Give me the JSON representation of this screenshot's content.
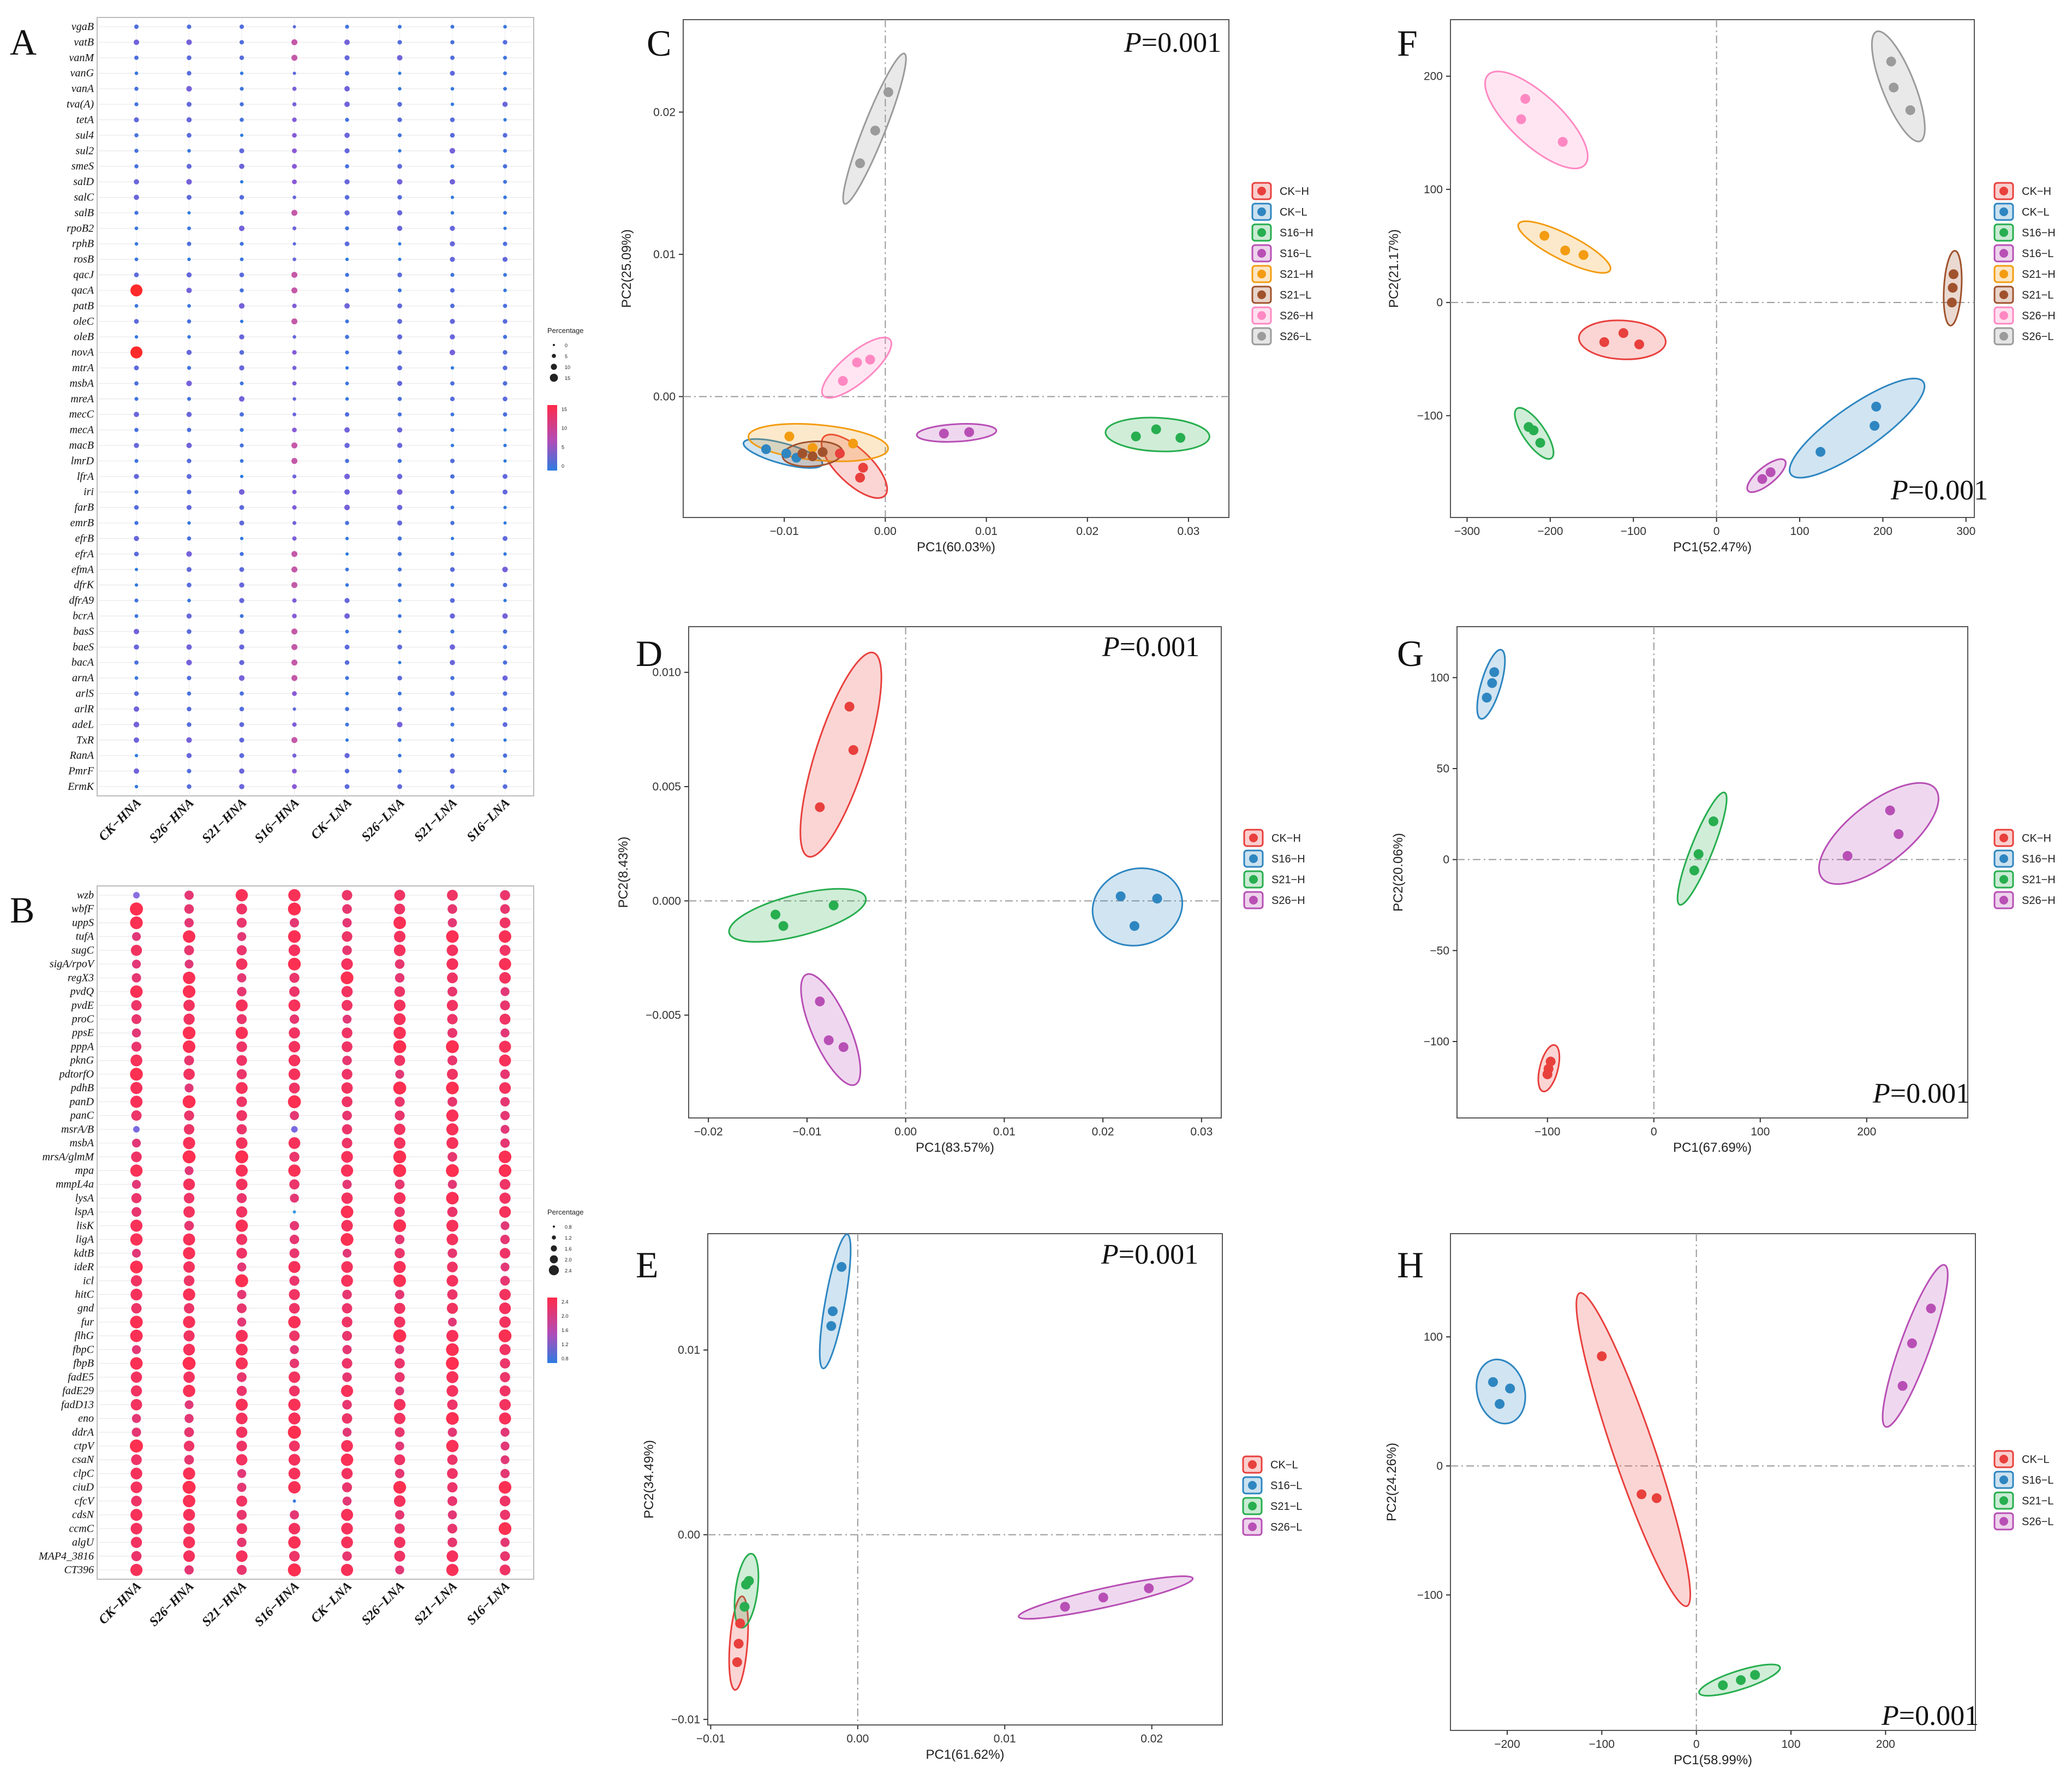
{
  "colors": {
    "CK": "#e8403d",
    "S16_1": "#2e86c1",
    "S16_2": "#27ae4f",
    "S21_1": "#f39c12",
    "S21_2": "#a0522d",
    "S26_1": "#ff88c2",
    "S26_2": "#9b9b9b",
    "purple": "#b84fb5",
    "bubbleA_low": "#2d7be0",
    "bubbleA_high": "#ff2a2a"
  },
  "chart_data": [
    {
      "panel": "A",
      "type": "heatmap",
      "genes": [
        "vgaB",
        "vatB",
        "vanM",
        "vanG",
        "vanA",
        "tva(A)",
        "tetA",
        "sul4",
        "sul2",
        "smeS",
        "salD",
        "salC",
        "salB",
        "rpoB2",
        "rphB",
        "rosB",
        "qacJ",
        "qacA",
        "patB",
        "oleC",
        "oleB",
        "novA",
        "mtrA",
        "msbA",
        "mreA",
        "mecC",
        "mecA",
        "macB",
        "lmrD",
        "lfrA",
        "iri",
        "farB",
        "emrB",
        "efrB",
        "efrA",
        "efmA",
        "dfrK",
        "dfrA9",
        "bcrA",
        "basS",
        "baeS",
        "bacA",
        "arnA",
        "arlS",
        "arlR",
        "adeL",
        "TxR",
        "RanA",
        "PmrF",
        "ErmK"
      ],
      "samples": [
        "CK−HNA",
        "S26−HNA",
        "S21−HNA",
        "S16−HNA",
        "CK−LNA",
        "S26−LNA",
        "S21−LNA",
        "S16−LNA"
      ],
      "legend_title": "Percentage",
      "size_legend": [
        "0",
        "5",
        "10",
        "15"
      ],
      "color_legend": [
        "15",
        "10",
        "5",
        "0"
      ],
      "highlights": [
        {
          "gene": "qacA",
          "sample": "CK−HNA",
          "value": 15
        },
        {
          "gene": "novA",
          "sample": "CK−HNA",
          "value": 15
        }
      ]
    },
    {
      "panel": "B",
      "type": "heatmap",
      "genes": [
        "wzb",
        "wbfF",
        "uppS",
        "tufA",
        "sugC",
        "sigA/rpoV",
        "regX3",
        "pvdQ",
        "pvdE",
        "proC",
        "ppsE",
        "pppA",
        "pknG",
        "pdtorfO",
        "pdhB",
        "panD",
        "panC",
        "msrA/B",
        "msbA",
        "mrsA/glmM",
        "mpa",
        "mmpL4a",
        "lysA",
        "lspA",
        "lisK",
        "ligA",
        "kdtB",
        "ideR",
        "icl",
        "hitC",
        "gnd",
        "fur",
        "flhG",
        "fbpC",
        "fbpB",
        "fadE5",
        "fadE29",
        "fadD13",
        "eno",
        "ddrA",
        "ctpV",
        "csaN",
        "clpC",
        "ciuD",
        "cfcV",
        "cdsN",
        "ccmC",
        "algU",
        "MAP4_3816",
        "CT396"
      ],
      "samples": [
        "CK−HNA",
        "S26−HNA",
        "S21−HNA",
        "S16−HNA",
        "CK−LNA",
        "S26−LNA",
        "S21−LNA",
        "S16−LNA"
      ],
      "legend_title": "Percentage",
      "size_legend": [
        "0.8",
        "1.2",
        "1.6",
        "2.0",
        "2.4"
      ],
      "color_legend": [
        "2.4",
        "2.0",
        "1.6",
        "1.2",
        "0.8"
      ]
    },
    {
      "panel": "C",
      "type": "scatter",
      "pvalue": "=0.001",
      "xlabel": "PC1(60.03%)",
      "ylabel": "PC2(25.09%)",
      "xlim": [
        -0.02,
        0.034
      ],
      "ylim": [
        -0.0085,
        0.0265
      ],
      "xticks": [
        -0.01,
        0.0,
        0.01,
        0.02,
        0.03
      ],
      "xtick_labels": [
        "−0.01",
        "0.00",
        "0.01",
        "0.02",
        "0.03"
      ],
      "yticks": [
        0.0,
        0.01,
        0.02
      ],
      "ytick_labels": [
        "0.00",
        "0.01",
        "0.02"
      ],
      "series": [
        {
          "name": "CK−H",
          "color": "CK",
          "points": [
            [
              -0.0045,
              -0.004
            ],
            [
              -0.0022,
              -0.005
            ],
            [
              -0.0025,
              -0.0057
            ]
          ]
        },
        {
          "name": "CK−L",
          "color": "S16_1",
          "points": [
            [
              -0.0118,
              -0.0037
            ],
            [
              -0.0098,
              -0.004
            ],
            [
              -0.0088,
              -0.0043
            ]
          ]
        },
        {
          "name": "S16−H",
          "color": "S16_2",
          "points": [
            [
              0.0248,
              -0.0028
            ],
            [
              0.0268,
              -0.0023
            ],
            [
              0.0292,
              -0.0029
            ]
          ]
        },
        {
          "name": "S16−L",
          "color": "purple",
          "points": [
            [
              0.0058,
              -0.0026
            ],
            [
              0.0083,
              -0.0025
            ]
          ]
        },
        {
          "name": "S21−H",
          "color": "S21_1",
          "points": [
            [
              -0.0095,
              -0.0028
            ],
            [
              -0.0032,
              -0.0033
            ],
            [
              -0.0072,
              -0.0036
            ]
          ]
        },
        {
          "name": "S21−L",
          "color": "S21_2",
          "points": [
            [
              -0.0082,
              -0.004
            ],
            [
              -0.0072,
              -0.0042
            ],
            [
              -0.0062,
              -0.0039
            ]
          ]
        },
        {
          "name": "S26−H",
          "color": "S26_1",
          "points": [
            [
              -0.0042,
              0.0011
            ],
            [
              -0.0028,
              0.0024
            ],
            [
              -0.0015,
              0.0026
            ]
          ]
        },
        {
          "name": "S26−L",
          "color": "S26_2",
          "points": [
            [
              -0.0025,
              0.0164
            ],
            [
              -0.001,
              0.0187
            ],
            [
              0.0003,
              0.0214
            ]
          ]
        }
      ]
    },
    {
      "panel": "D",
      "type": "scatter",
      "pvalue": "=0.001",
      "xlabel": "PC1(83.57%)",
      "ylabel": "PC2(8.43%)",
      "xlim": [
        -0.022,
        0.032
      ],
      "ylim": [
        -0.0095,
        0.012
      ],
      "xticks": [
        -0.02,
        -0.01,
        0.0,
        0.01,
        0.02,
        0.03
      ],
      "xtick_labels": [
        "−0.02",
        "−0.01",
        "0.00",
        "0.01",
        "0.02",
        "0.03"
      ],
      "yticks": [
        -0.005,
        0.0,
        0.005,
        0.01
      ],
      "ytick_labels": [
        "−0.005",
        "0.000",
        "0.005",
        "0.010"
      ],
      "series": [
        {
          "name": "CK−H",
          "color": "CK",
          "points": [
            [
              -0.0087,
              0.0041
            ],
            [
              -0.0057,
              0.0085
            ],
            [
              -0.0053,
              0.0066
            ]
          ]
        },
        {
          "name": "S16−H",
          "color": "S16_1",
          "points": [
            [
              0.0218,
              0.0002
            ],
            [
              0.0232,
              -0.0011
            ],
            [
              0.0255,
              0.0001
            ]
          ]
        },
        {
          "name": "S21−H",
          "color": "S16_2",
          "points": [
            [
              -0.0132,
              -0.0006
            ],
            [
              -0.0124,
              -0.0011
            ],
            [
              -0.0073,
              -0.0002
            ]
          ]
        },
        {
          "name": "S26−H",
          "color": "purple",
          "points": [
            [
              -0.0087,
              -0.0044
            ],
            [
              -0.0078,
              -0.0061
            ],
            [
              -0.0063,
              -0.0064
            ]
          ]
        }
      ]
    },
    {
      "panel": "E",
      "type": "scatter",
      "pvalue": "=0.001",
      "xlabel": "PC1(61.62%)",
      "ylabel": "PC2(34.49%)",
      "xlim": [
        -0.0102,
        0.0248
      ],
      "ylim": [
        -0.0103,
        0.0163
      ],
      "xticks": [
        -0.01,
        0.0,
        0.01,
        0.02
      ],
      "xtick_labels": [
        "−0.01",
        "0.00",
        "0.01",
        "0.02"
      ],
      "yticks": [
        -0.01,
        0.0,
        0.01
      ],
      "ytick_labels": [
        "−0.01",
        "0.00",
        "0.01"
      ],
      "series": [
        {
          "name": "CK−L",
          "color": "CK",
          "points": [
            [
              -0.0082,
              -0.0069
            ],
            [
              -0.0081,
              -0.0059
            ],
            [
              -0.008,
              -0.0048
            ]
          ]
        },
        {
          "name": "S16−L",
          "color": "S16_1",
          "points": [
            [
              -0.0018,
              0.0113
            ],
            [
              -0.0017,
              0.0121
            ],
            [
              -0.0011,
              0.0145
            ]
          ]
        },
        {
          "name": "S21−L",
          "color": "S16_2",
          "points": [
            [
              -0.0077,
              -0.0039
            ],
            [
              -0.0076,
              -0.0027
            ],
            [
              -0.0074,
              -0.0025
            ]
          ]
        },
        {
          "name": "S26−L",
          "color": "purple",
          "points": [
            [
              0.0141,
              -0.0039
            ],
            [
              0.0167,
              -0.0034
            ],
            [
              0.0198,
              -0.0029
            ]
          ]
        }
      ]
    },
    {
      "panel": "F",
      "type": "scatter",
      "pvalue": "=0.001",
      "xlabel": "PC1(52.47%)",
      "ylabel": "PC2(21.17%)",
      "xlim": [
        -320,
        310
      ],
      "ylim": [
        -190,
        250
      ],
      "xticks": [
        -300,
        -200,
        -100,
        0,
        100,
        200,
        300
      ],
      "xtick_labels": [
        "−300",
        "−200",
        "−100",
        "0",
        "100",
        "200",
        "300"
      ],
      "yticks": [
        -100,
        0,
        100,
        200
      ],
      "ytick_labels": [
        "−100",
        "0",
        "100",
        "200"
      ],
      "series": [
        {
          "name": "CK−H",
          "color": "CK",
          "points": [
            [
              -135,
              -35
            ],
            [
              -112,
              -27
            ],
            [
              -93,
              -37
            ]
          ]
        },
        {
          "name": "CK−L",
          "color": "S16_1",
          "points": [
            [
              125,
              -132
            ],
            [
              190,
              -109
            ],
            [
              192,
              -92
            ]
          ]
        },
        {
          "name": "S16−H",
          "color": "S16_2",
          "points": [
            [
              -226,
              -110
            ],
            [
              -220,
              -113
            ],
            [
              -212,
              -124
            ]
          ]
        },
        {
          "name": "S16−L",
          "color": "purple",
          "points": [
            [
              55,
              -156
            ],
            [
              65,
              -150
            ]
          ]
        },
        {
          "name": "S21−H",
          "color": "S21_1",
          "points": [
            [
              -207,
              59
            ],
            [
              -182,
              46
            ],
            [
              -160,
              42
            ]
          ]
        },
        {
          "name": "S21−L",
          "color": "S21_2",
          "points": [
            [
              283,
              0
            ],
            [
              284,
              13
            ],
            [
              285,
              25
            ]
          ]
        },
        {
          "name": "S26−H",
          "color": "S26_1",
          "points": [
            [
              -235,
              162
            ],
            [
              -230,
              180
            ],
            [
              -185,
              142
            ]
          ]
        },
        {
          "name": "S26−L",
          "color": "S26_2",
          "points": [
            [
              210,
              213
            ],
            [
              213,
              190
            ],
            [
              233,
              170
            ]
          ]
        }
      ]
    },
    {
      "panel": "G",
      "type": "scatter",
      "pvalue": "=0.001",
      "xlabel": "PC1(67.69%)",
      "ylabel": "PC2(20.06%)",
      "xlim": [
        -185,
        295
      ],
      "ylim": [
        -142,
        128
      ],
      "xticks": [
        -100,
        0,
        100,
        200
      ],
      "xtick_labels": [
        "−100",
        "0",
        "100",
        "200"
      ],
      "yticks": [
        -100,
        -50,
        0,
        50,
        100
      ],
      "ytick_labels": [
        "−100",
        "−50",
        "0",
        "50",
        "100"
      ],
      "series": [
        {
          "name": "CK−H",
          "color": "CK",
          "points": [
            [
              -100,
              -118
            ],
            [
              -99,
              -115
            ],
            [
              -97,
              -111
            ]
          ]
        },
        {
          "name": "S16−H",
          "color": "S16_1",
          "points": [
            [
              -157,
              89
            ],
            [
              -152,
              97
            ],
            [
              -150,
              103
            ]
          ]
        },
        {
          "name": "S21−H",
          "color": "S16_2",
          "points": [
            [
              38,
              -6
            ],
            [
              42,
              3
            ],
            [
              56,
              21
            ]
          ]
        },
        {
          "name": "S26−H",
          "color": "purple",
          "points": [
            [
              182,
              2
            ],
            [
              222,
              27
            ],
            [
              230,
              14
            ]
          ]
        }
      ]
    },
    {
      "panel": "H",
      "type": "scatter",
      "pvalue": "=0.001",
      "xlabel": "PC1(58.99%)",
      "ylabel": "PC2(24.26%)",
      "xlim": [
        -260,
        295
      ],
      "ylim": [
        -205,
        180
      ],
      "xticks": [
        -200,
        -100,
        0,
        100,
        200
      ],
      "xtick_labels": [
        "−200",
        "−100",
        "0",
        "100",
        "200"
      ],
      "yticks": [
        -100,
        0,
        100
      ],
      "ytick_labels": [
        "−100",
        "0",
        "100"
      ],
      "series": [
        {
          "name": "CK−L",
          "color": "CK",
          "points": [
            [
              -100,
              85
            ],
            [
              -58,
              -22
            ],
            [
              -42,
              -25
            ]
          ]
        },
        {
          "name": "S16−L",
          "color": "S16_1",
          "points": [
            [
              -215,
              65
            ],
            [
              -208,
              48
            ],
            [
              -197,
              60
            ]
          ]
        },
        {
          "name": "S21−L",
          "color": "S16_2",
          "points": [
            [
              28,
              -170
            ],
            [
              47,
              -166
            ],
            [
              62,
              -162
            ]
          ]
        },
        {
          "name": "S26−L",
          "color": "purple",
          "points": [
            [
              218,
              62
            ],
            [
              228,
              95
            ],
            [
              248,
              122
            ]
          ]
        }
      ]
    }
  ]
}
